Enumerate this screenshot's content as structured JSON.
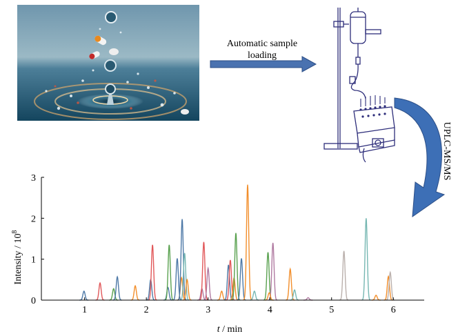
{
  "arrow_label": {
    "line1": "Automatic sample",
    "line2": "loading"
  },
  "side_label": "UPLC-MS/MS",
  "colors": {
    "arrow_blue": "#4a72b0",
    "series": [
      "#4e79a7",
      "#f28e2b",
      "#e15759",
      "#76b7b2",
      "#59a14f",
      "#edc948",
      "#b07aa1",
      "#ff9da7",
      "#9c755f",
      "#bab0ac"
    ]
  },
  "chart_data": {
    "type": "line",
    "title": "",
    "xlabel_italic": "t",
    "xlabel_rest": " / min",
    "ylabel": "Intensity / 10",
    "ylabel_sup": "8",
    "xlim": [
      0.3,
      6.5
    ],
    "ylim": [
      0,
      3
    ],
    "xticks": [
      1,
      2,
      3,
      4,
      5,
      6
    ],
    "yticks": [
      0,
      1,
      2,
      3
    ],
    "peaks": [
      {
        "t": 0.99,
        "h": 0.22,
        "c": "#4e79a7"
      },
      {
        "t": 1.25,
        "h": 0.42,
        "c": "#e15759"
      },
      {
        "t": 1.47,
        "h": 0.28,
        "c": "#59a14f"
      },
      {
        "t": 1.53,
        "h": 0.57,
        "c": "#4e79a7"
      },
      {
        "t": 1.82,
        "h": 0.35,
        "c": "#f28e2b"
      },
      {
        "t": 2.07,
        "h": 0.5,
        "c": "#4e79a7"
      },
      {
        "t": 2.1,
        "h": 1.35,
        "c": "#e15759"
      },
      {
        "t": 2.35,
        "h": 0.31,
        "c": "#4e79a7"
      },
      {
        "t": 2.37,
        "h": 1.35,
        "c": "#59a14f"
      },
      {
        "t": 2.5,
        "h": 1.02,
        "c": "#4e79a7"
      },
      {
        "t": 2.57,
        "h": 0.55,
        "c": "#f28e2b"
      },
      {
        "t": 2.58,
        "h": 1.98,
        "c": "#4e79a7"
      },
      {
        "t": 2.62,
        "h": 1.15,
        "c": "#76b7b2"
      },
      {
        "t": 2.66,
        "h": 0.5,
        "c": "#f28e2b"
      },
      {
        "t": 2.9,
        "h": 0.28,
        "c": "#b07aa1"
      },
      {
        "t": 2.93,
        "h": 1.42,
        "c": "#e15759"
      },
      {
        "t": 3.0,
        "h": 0.78,
        "c": "#b07aa1"
      },
      {
        "t": 3.22,
        "h": 0.22,
        "c": "#f28e2b"
      },
      {
        "t": 3.33,
        "h": 0.86,
        "c": "#4e79a7"
      },
      {
        "t": 3.36,
        "h": 0.98,
        "c": "#e15759"
      },
      {
        "t": 3.42,
        "h": 0.54,
        "c": "#f28e2b"
      },
      {
        "t": 3.45,
        "h": 1.64,
        "c": "#59a14f"
      },
      {
        "t": 3.54,
        "h": 1.02,
        "c": "#4e79a7"
      },
      {
        "t": 3.64,
        "h": 2.82,
        "c": "#f28e2b"
      },
      {
        "t": 3.75,
        "h": 0.22,
        "c": "#76b7b2"
      },
      {
        "t": 3.97,
        "h": 1.17,
        "c": "#59a14f"
      },
      {
        "t": 4.05,
        "h": 1.4,
        "c": "#b07aa1"
      },
      {
        "t": 3.99,
        "h": 0.18,
        "c": "#f28e2b"
      },
      {
        "t": 4.33,
        "h": 0.76,
        "c": "#f28e2b"
      },
      {
        "t": 4.4,
        "h": 0.25,
        "c": "#76b7b2"
      },
      {
        "t": 4.62,
        "h": 0.06,
        "c": "#b07aa1"
      },
      {
        "t": 5.2,
        "h": 1.2,
        "c": "#bab0ac"
      },
      {
        "t": 5.56,
        "h": 2.0,
        "c": "#76b7b2"
      },
      {
        "t": 5.72,
        "h": 0.12,
        "c": "#f28e2b"
      },
      {
        "t": 5.92,
        "h": 0.58,
        "c": "#f28e2b"
      },
      {
        "t": 5.95,
        "h": 0.68,
        "c": "#bab0ac"
      }
    ]
  }
}
